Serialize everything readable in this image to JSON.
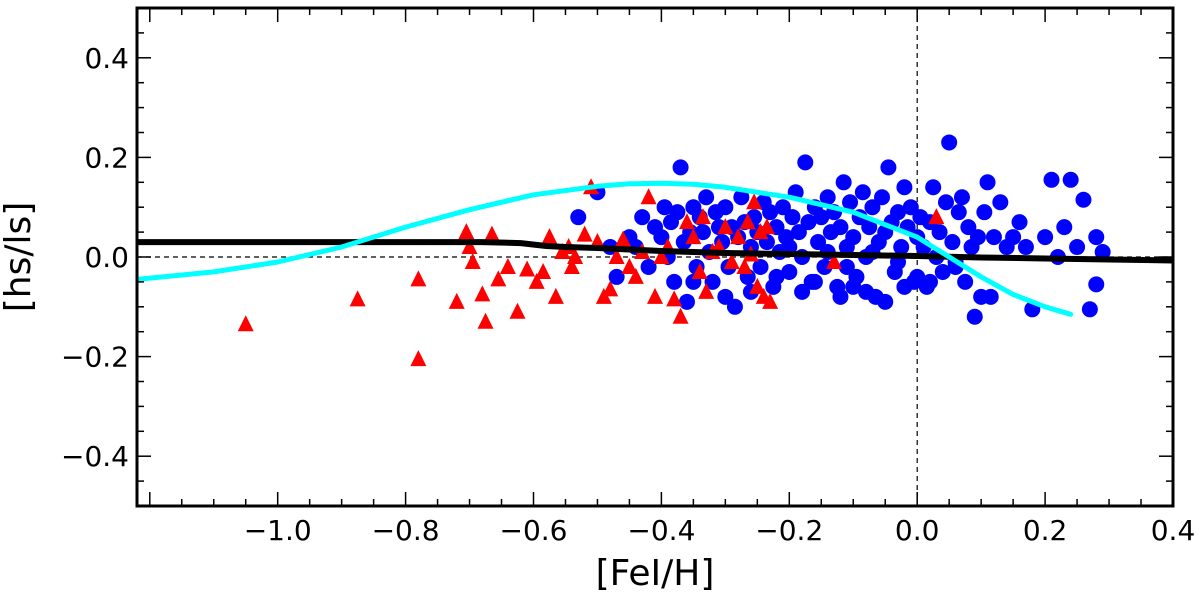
{
  "chart_data": {
    "type": "scatter",
    "title": "",
    "xlabel": "[FeI/H]",
    "ylabel": "[hs/ls]",
    "xlim": [
      -1.22,
      0.4
    ],
    "ylim": [
      -0.5,
      0.5
    ],
    "xticks": [
      -1.0,
      -0.8,
      -0.6,
      -0.4,
      -0.2,
      0.0,
      0.2,
      0.4
    ],
    "xtick_labels": [
      "−1.0",
      "−0.8",
      "−0.6",
      "−0.4",
      "−0.2",
      "0.0",
      "0.2",
      "0.4"
    ],
    "yticks": [
      -0.4,
      -0.2,
      0.0,
      0.2,
      0.4
    ],
    "ytick_labels": [
      "−0.4",
      "−0.2",
      "0.0",
      "0.2",
      "0.4"
    ],
    "reference_lines": [
      {
        "name": "zero-hs-ls-line",
        "orientation": "horizontal",
        "value": 0.0
      },
      {
        "name": "solar-metallicity-line",
        "orientation": "vertical",
        "value": 0.0
      }
    ],
    "series": [
      {
        "name": "red triangles",
        "marker": "triangle",
        "color": "#ff0000",
        "points": [
          [
            -1.05,
            -0.135
          ],
          [
            -0.875,
            -0.085
          ],
          [
            -0.78,
            -0.045
          ],
          [
            -0.78,
            -0.205
          ],
          [
            -0.72,
            -0.09
          ],
          [
            -0.705,
            0.05
          ],
          [
            -0.7,
            0.02
          ],
          [
            -0.695,
            -0.01
          ],
          [
            -0.68,
            -0.075
          ],
          [
            -0.675,
            -0.13
          ],
          [
            -0.665,
            0.045
          ],
          [
            -0.655,
            -0.045
          ],
          [
            -0.64,
            -0.02
          ],
          [
            -0.625,
            -0.11
          ],
          [
            -0.61,
            -0.025
          ],
          [
            -0.595,
            -0.05
          ],
          [
            -0.585,
            -0.03
          ],
          [
            -0.575,
            0.04
          ],
          [
            -0.565,
            -0.08
          ],
          [
            -0.555,
            0.01
          ],
          [
            -0.545,
            0.02
          ],
          [
            -0.54,
            -0.02
          ],
          [
            -0.535,
            0.0
          ],
          [
            -0.52,
            0.045
          ],
          [
            -0.51,
            0.14
          ],
          [
            -0.5,
            0.03
          ],
          [
            -0.49,
            -0.08
          ],
          [
            -0.48,
            -0.065
          ],
          [
            -0.47,
            0.0
          ],
          [
            -0.46,
            0.035
          ],
          [
            -0.45,
            -0.02
          ],
          [
            -0.44,
            -0.04
          ],
          [
            -0.43,
            0.01
          ],
          [
            -0.42,
            0.12
          ],
          [
            -0.41,
            -0.08
          ],
          [
            -0.4,
            0.0
          ],
          [
            -0.39,
            0.02
          ],
          [
            -0.38,
            -0.085
          ],
          [
            -0.37,
            -0.12
          ],
          [
            -0.36,
            0.07
          ],
          [
            -0.35,
            0.04
          ],
          [
            -0.34,
            -0.03
          ],
          [
            -0.335,
            0.08
          ],
          [
            -0.33,
            -0.07
          ],
          [
            -0.32,
            0.01
          ],
          [
            -0.31,
            0.02
          ],
          [
            -0.3,
            0.06
          ],
          [
            -0.29,
            -0.01
          ],
          [
            -0.28,
            0.04
          ],
          [
            -0.27,
            -0.02
          ],
          [
            -0.265,
            0.07
          ],
          [
            -0.26,
            0.005
          ],
          [
            -0.255,
            0.11
          ],
          [
            -0.25,
            -0.06
          ],
          [
            -0.245,
            0.05
          ],
          [
            -0.24,
            -0.08
          ],
          [
            -0.235,
            0.06
          ],
          [
            -0.23,
            -0.09
          ],
          [
            -0.13,
            -0.01
          ],
          [
            0.03,
            0.08
          ]
        ]
      },
      {
        "name": "blue circles",
        "marker": "circle",
        "color": "#0000ff",
        "points": [
          [
            -0.53,
            0.08
          ],
          [
            -0.5,
            0.13
          ],
          [
            -0.48,
            0.02
          ],
          [
            -0.47,
            -0.04
          ],
          [
            -0.45,
            0.04
          ],
          [
            -0.44,
            0.02
          ],
          [
            -0.43,
            0.08
          ],
          [
            -0.42,
            -0.02
          ],
          [
            -0.41,
            0.06
          ],
          [
            -0.4,
            0.04
          ],
          [
            -0.395,
            0.1
          ],
          [
            -0.39,
            0.0
          ],
          [
            -0.385,
            0.07
          ],
          [
            -0.38,
            -0.05
          ],
          [
            -0.375,
            0.09
          ],
          [
            -0.37,
            0.18
          ],
          [
            -0.365,
            0.03
          ],
          [
            -0.36,
            -0.09
          ],
          [
            -0.355,
            0.05
          ],
          [
            -0.35,
            0.1
          ],
          [
            -0.345,
            -0.02
          ],
          [
            -0.34,
            0.08
          ],
          [
            -0.335,
            0.05
          ],
          [
            -0.33,
            0.12
          ],
          [
            -0.325,
            0.01
          ],
          [
            -0.32,
            -0.05
          ],
          [
            -0.315,
            0.09
          ],
          [
            -0.31,
            0.06
          ],
          [
            -0.305,
            0.03
          ],
          [
            -0.3,
            0.1
          ],
          [
            -0.295,
            -0.02
          ],
          [
            -0.29,
            0.06
          ],
          [
            -0.285,
            -0.1
          ],
          [
            -0.28,
            0.04
          ],
          [
            -0.275,
            0.12
          ],
          [
            -0.27,
            0.07
          ],
          [
            -0.265,
            -0.04
          ],
          [
            -0.26,
            0.02
          ],
          [
            -0.255,
            0.08
          ],
          [
            -0.25,
            0.05
          ],
          [
            -0.245,
            -0.02
          ],
          [
            -0.24,
            0.11
          ],
          [
            -0.235,
            0.03
          ],
          [
            -0.23,
            0.09
          ],
          [
            -0.225,
            -0.06
          ],
          [
            -0.22,
            0.06
          ],
          [
            -0.215,
            0.01
          ],
          [
            -0.21,
            0.1
          ],
          [
            -0.205,
            0.04
          ],
          [
            -0.2,
            -0.03
          ],
          [
            -0.195,
            0.08
          ],
          [
            -0.19,
            0.13
          ],
          [
            -0.185,
            0.05
          ],
          [
            -0.18,
            0.0
          ],
          [
            -0.175,
            0.19
          ],
          [
            -0.17,
            0.07
          ],
          [
            -0.165,
            -0.05
          ],
          [
            -0.16,
            0.1
          ],
          [
            -0.155,
            0.03
          ],
          [
            -0.15,
            0.08
          ],
          [
            -0.145,
            -0.02
          ],
          [
            -0.14,
            0.12
          ],
          [
            -0.135,
            0.05
          ],
          [
            -0.13,
            0.09
          ],
          [
            -0.125,
            -0.06
          ],
          [
            -0.12,
            0.06
          ],
          [
            -0.115,
            0.15
          ],
          [
            -0.11,
            0.02
          ],
          [
            -0.105,
            0.11
          ],
          [
            -0.1,
            0.04
          ],
          [
            -0.095,
            -0.04
          ],
          [
            -0.09,
            0.08
          ],
          [
            -0.085,
            0.13
          ],
          [
            -0.08,
            0.0
          ],
          [
            -0.075,
            0.06
          ],
          [
            -0.07,
            0.1
          ],
          [
            -0.065,
            -0.08
          ],
          [
            -0.06,
            0.03
          ],
          [
            -0.055,
            0.12
          ],
          [
            -0.05,
            0.05
          ],
          [
            -0.045,
            0.18
          ],
          [
            -0.04,
            0.07
          ],
          [
            -0.035,
            -0.03
          ],
          [
            -0.03,
            0.09
          ],
          [
            -0.025,
            0.02
          ],
          [
            -0.02,
            0.14
          ],
          [
            -0.015,
            0.06
          ],
          [
            -0.01,
            0.1
          ],
          [
            -0.005,
            -0.05
          ],
          [
            0.0,
            0.04
          ],
          [
            0.005,
            0.08
          ],
          [
            0.01,
            0.02
          ],
          [
            0.015,
            -0.06
          ],
          [
            0.02,
            0.07
          ],
          [
            0.025,
            0.14
          ],
          [
            0.03,
            0.0
          ],
          [
            0.035,
            0.05
          ],
          [
            0.04,
            -0.03
          ],
          [
            0.045,
            0.11
          ],
          [
            0.05,
            0.23
          ],
          [
            0.055,
            0.03
          ],
          [
            0.06,
            -0.02
          ],
          [
            0.065,
            0.09
          ],
          [
            0.07,
            0.12
          ],
          [
            0.075,
            -0.05
          ],
          [
            0.08,
            0.06
          ],
          [
            0.085,
            0.02
          ],
          [
            0.09,
            -0.12
          ],
          [
            0.095,
            0.04
          ],
          [
            0.1,
            -0.08
          ],
          [
            0.105,
            0.09
          ],
          [
            0.11,
            0.15
          ],
          [
            0.115,
            -0.08
          ],
          [
            0.12,
            0.04
          ],
          [
            0.13,
            0.11
          ],
          [
            0.14,
            0.02
          ],
          [
            0.15,
            0.04
          ],
          [
            0.16,
            0.07
          ],
          [
            0.17,
            0.02
          ],
          [
            0.18,
            -0.105
          ],
          [
            0.2,
            0.04
          ],
          [
            0.21,
            0.155
          ],
          [
            0.22,
            0.0
          ],
          [
            0.23,
            0.06
          ],
          [
            0.24,
            0.155
          ],
          [
            0.25,
            0.02
          ],
          [
            0.26,
            0.115
          ],
          [
            0.27,
            -0.105
          ],
          [
            0.28,
            0.04
          ],
          [
            0.28,
            -0.055
          ],
          [
            0.29,
            0.01
          ],
          [
            -0.22,
            -0.04
          ],
          [
            -0.18,
            -0.07
          ],
          [
            -0.16,
            -0.05
          ],
          [
            -0.12,
            -0.08
          ],
          [
            -0.1,
            -0.06
          ],
          [
            -0.08,
            -0.07
          ],
          [
            -0.05,
            -0.09
          ],
          [
            -0.02,
            -0.06
          ],
          [
            0.0,
            -0.04
          ],
          [
            -0.3,
            -0.08
          ],
          [
            -0.35,
            -0.05
          ],
          [
            -0.26,
            -0.07
          ],
          [
            -0.2,
            0.02
          ],
          [
            -0.14,
            0.01
          ],
          [
            -0.11,
            -0.02
          ],
          [
            -0.07,
            0.01
          ],
          [
            -0.03,
            -0.01
          ],
          [
            0.02,
            -0.05
          ],
          [
            0.06,
            -0.01
          ]
        ]
      },
      {
        "name": "black model curve",
        "marker": "line",
        "color": "#000000",
        "points": [
          [
            -1.22,
            0.03
          ],
          [
            -1.0,
            0.03
          ],
          [
            -0.8,
            0.03
          ],
          [
            -0.68,
            0.03
          ],
          [
            -0.62,
            0.028
          ],
          [
            -0.58,
            0.022
          ],
          [
            -0.55,
            0.02
          ],
          [
            -0.5,
            0.018
          ],
          [
            -0.45,
            0.015
          ],
          [
            -0.4,
            0.012
          ],
          [
            -0.3,
            0.008
          ],
          [
            -0.2,
            0.006
          ],
          [
            -0.1,
            0.004
          ],
          [
            0.0,
            0.002
          ],
          [
            0.1,
            -0.001
          ],
          [
            0.2,
            -0.003
          ],
          [
            0.3,
            -0.005
          ],
          [
            0.4,
            -0.007
          ]
        ]
      },
      {
        "name": "cyan model curve",
        "marker": "line",
        "color": "#00ffff",
        "points": [
          [
            -1.22,
            -0.045
          ],
          [
            -1.1,
            -0.03
          ],
          [
            -1.0,
            -0.01
          ],
          [
            -0.9,
            0.02
          ],
          [
            -0.8,
            0.06
          ],
          [
            -0.7,
            0.095
          ],
          [
            -0.6,
            0.125
          ],
          [
            -0.5,
            0.142
          ],
          [
            -0.45,
            0.147
          ],
          [
            -0.4,
            0.148
          ],
          [
            -0.35,
            0.146
          ],
          [
            -0.3,
            0.14
          ],
          [
            -0.2,
            0.12
          ],
          [
            -0.1,
            0.09
          ],
          [
            0.0,
            0.04
          ],
          [
            0.05,
            0.0
          ],
          [
            0.1,
            -0.04
          ],
          [
            0.15,
            -0.075
          ],
          [
            0.2,
            -0.1
          ],
          [
            0.24,
            -0.115
          ]
        ]
      }
    ]
  }
}
